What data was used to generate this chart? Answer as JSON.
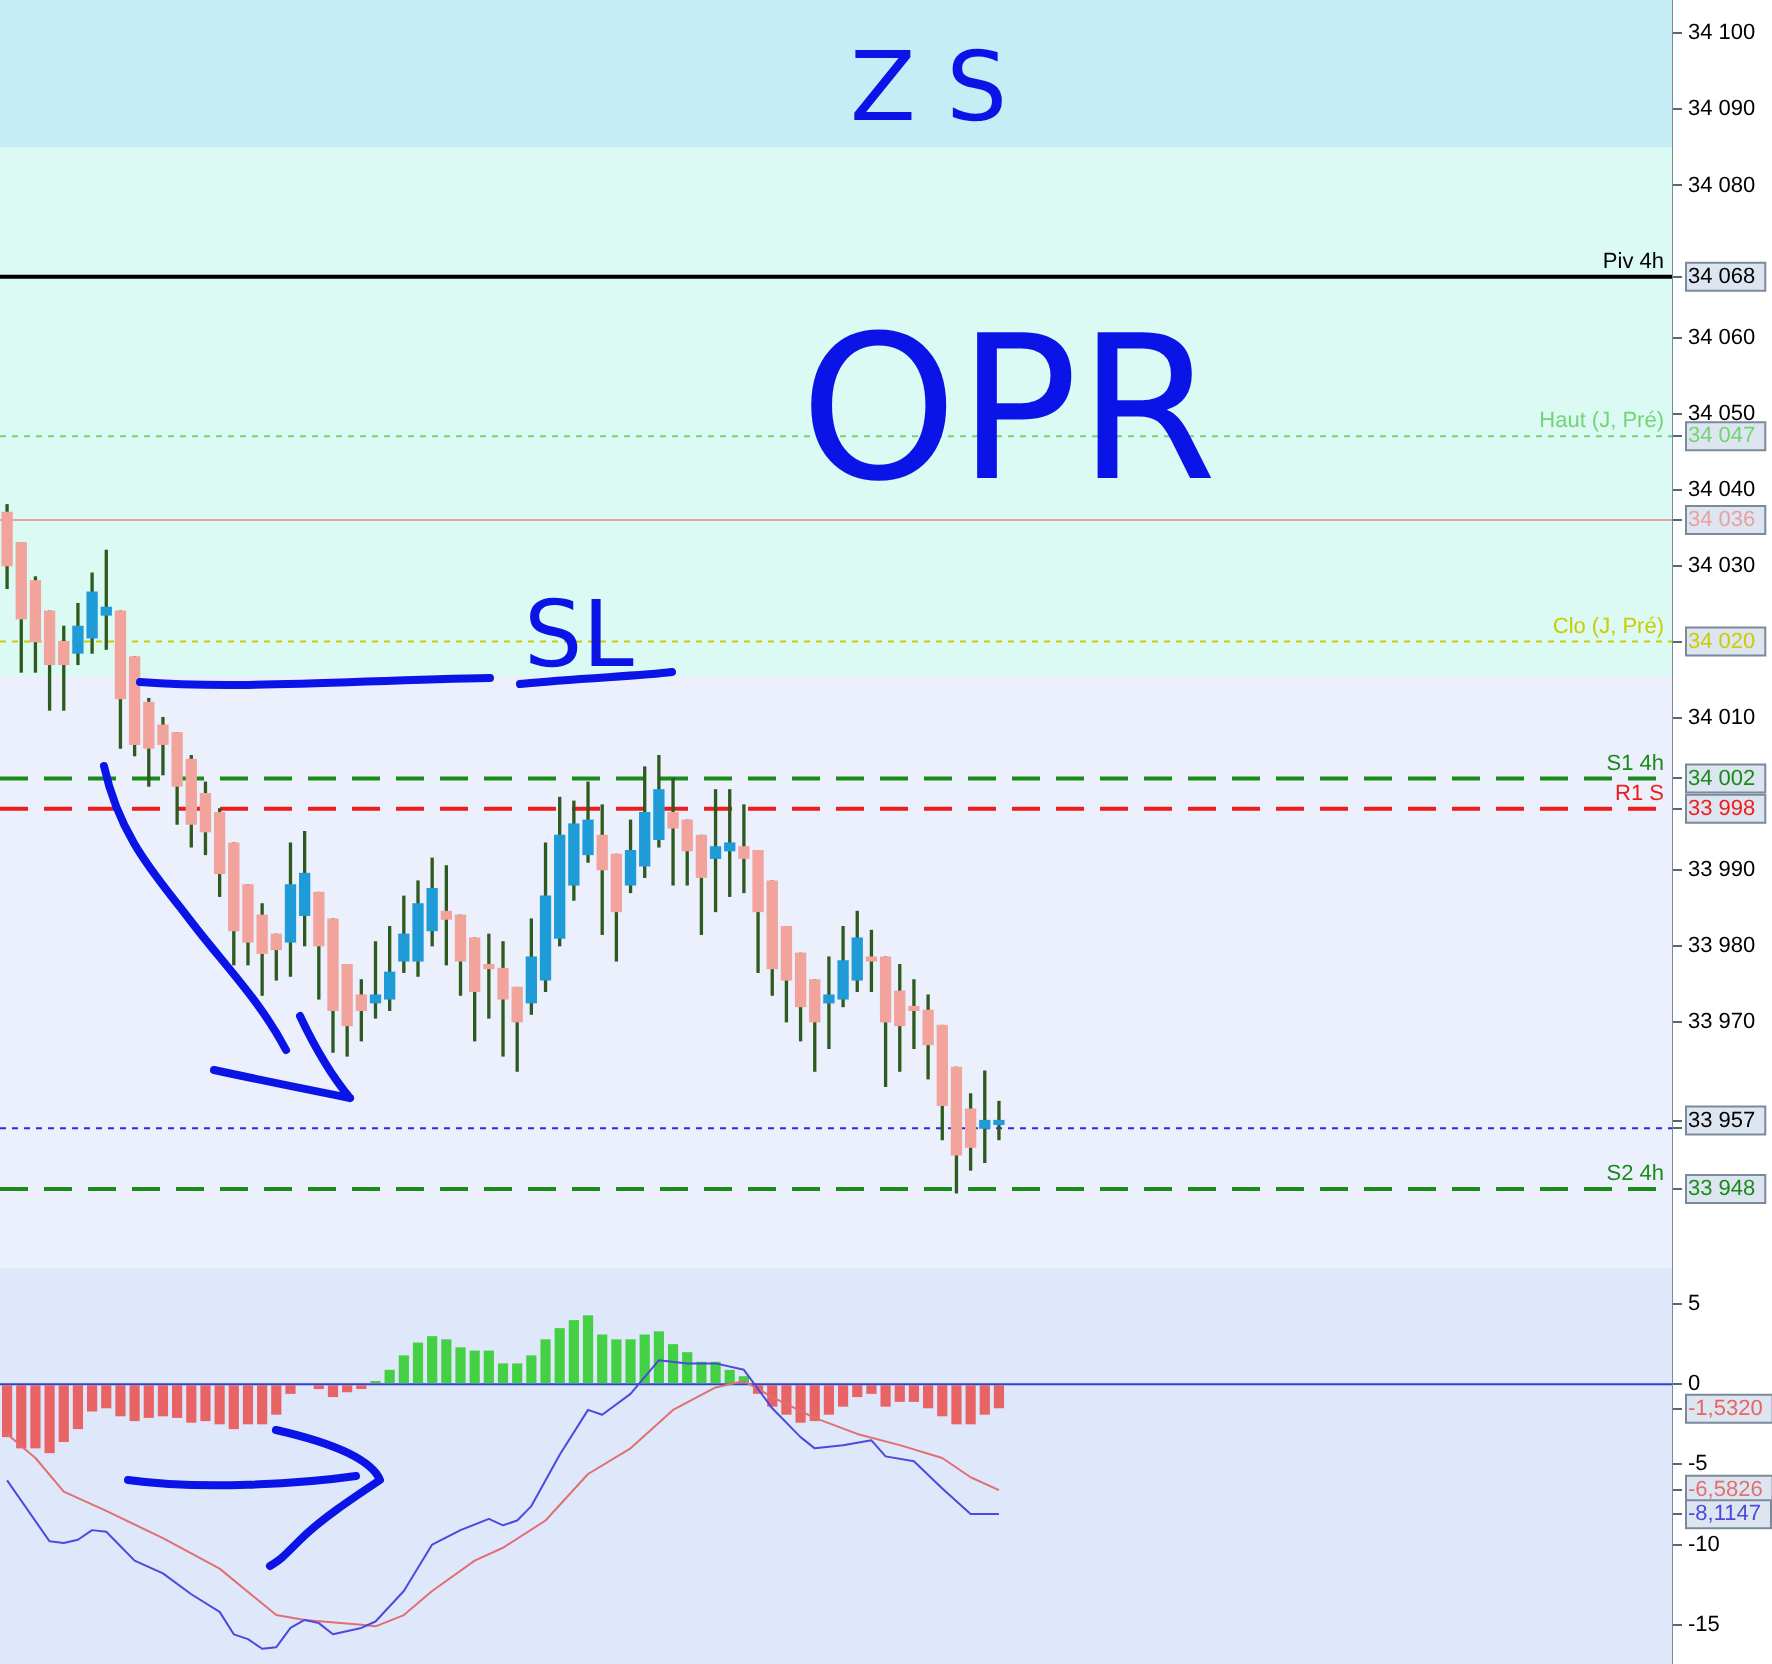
{
  "chart_data": [
    {
      "type": "candlestick",
      "tick_labels": "y",
      "categories": [
        null,
        null,
        null,
        null,
        null,
        null,
        null,
        null,
        null,
        null,
        null,
        null,
        null,
        null,
        null,
        null,
        null,
        null,
        null,
        null,
        null,
        null,
        null,
        null,
        null,
        null,
        null,
        null,
        null,
        null,
        null,
        null,
        null,
        null,
        null,
        null,
        null,
        null,
        null,
        null,
        null,
        null,
        null,
        null,
        null,
        null,
        null,
        null,
        null,
        null,
        null,
        null,
        null,
        null,
        null,
        null,
        null,
        null,
        null,
        null,
        null,
        null,
        null,
        null,
        null,
        null,
        null,
        null,
        null,
        null,
        null,
        null,
        null,
        null,
        null,
        null,
        null,
        null,
        null,
        null,
        null,
        null,
        null,
        null,
        null,
        null,
        null,
        null,
        null,
        null,
        null,
        null,
        null,
        null,
        null,
        null,
        null,
        null,
        null,
        null,
        null,
        null,
        null,
        null,
        null,
        null,
        null,
        null,
        null,
        null,
        null,
        null,
        null,
        null,
        null,
        null,
        null,
        null
      ],
      "ohlc": [
        [
          34037,
          34038,
          34027,
          34030
        ],
        [
          34033,
          34033,
          34016,
          34023
        ],
        [
          34028,
          34028.5,
          34016,
          34020
        ],
        [
          34024,
          34024,
          34011,
          34017
        ],
        [
          34020,
          34022,
          34011,
          34017
        ],
        [
          34018.5,
          34025,
          34017,
          34022
        ],
        [
          34020.5,
          34029,
          34018.5,
          34026.5
        ],
        [
          34023.5,
          34032,
          34019,
          34024.5
        ],
        [
          34024,
          34024,
          34006,
          34012.5
        ],
        [
          34018,
          34018,
          34005,
          34006.5
        ],
        [
          34012,
          34012.5,
          34001,
          34006
        ],
        [
          34009,
          34010,
          34002.5,
          34006.5
        ],
        [
          34008,
          34008,
          33996,
          34001
        ],
        [
          34004.5,
          34005,
          33993,
          33996
        ],
        [
          34000,
          34001.5,
          33992,
          33995
        ],
        [
          33997.5,
          33998,
          33986.5,
          33989.5
        ],
        [
          33993.5,
          33993.5,
          33977.5,
          33982
        ],
        [
          33988,
          33988,
          33977.5,
          33980.5
        ],
        [
          33984,
          33985.5,
          33973.5,
          33979
        ],
        [
          33981.5,
          33981.5,
          33975.5,
          33979.5
        ],
        [
          33980.5,
          33993.5,
          33976,
          33988
        ],
        [
          33984,
          33995,
          33980,
          33989.5
        ],
        [
          33987,
          33987,
          33973,
          33980
        ],
        [
          33983.5,
          33983.5,
          33966,
          33971.5
        ],
        [
          33977.5,
          33977.5,
          33965.5,
          33969.5
        ],
        [
          33973.5,
          33975.5,
          33967.5,
          33971.5
        ],
        [
          33972.5,
          33980.5,
          33970.5,
          33973.5
        ],
        [
          33973,
          33982.5,
          33971.5,
          33976.5
        ],
        [
          33978,
          33986.5,
          33976.5,
          33981.5
        ],
        [
          33978,
          33988.5,
          33976,
          33985.5
        ],
        [
          33982,
          33991.5,
          33980,
          33987.5
        ],
        [
          33984.5,
          33990.5,
          33977.5,
          33983.5
        ],
        [
          33984,
          33984,
          33973.5,
          33978
        ],
        [
          33981,
          33981,
          33967.5,
          33974
        ],
        [
          33977.5,
          33981.5,
          33970.5,
          33977
        ],
        [
          33977,
          33980.5,
          33965.5,
          33973
        ],
        [
          33974.5,
          33974.5,
          33963.5,
          33970
        ],
        [
          33972.5,
          33983.5,
          33971,
          33978.5
        ],
        [
          33975.5,
          33993.5,
          33974,
          33986.5
        ],
        [
          33981,
          33999.5,
          33980,
          33994.5
        ],
        [
          33988,
          33999,
          33986,
          33996
        ],
        [
          33992,
          34001.5,
          33991,
          33996.5
        ],
        [
          33994.5,
          33998.5,
          33981.5,
          33990
        ],
        [
          33992,
          33992,
          33978,
          33984.5
        ],
        [
          33988,
          33996.5,
          33987,
          33992.5
        ],
        [
          33990.5,
          34003.5,
          33989,
          33997.5
        ],
        [
          33994,
          34005,
          33993,
          34000.5
        ],
        [
          33997.5,
          34002,
          33988,
          33995.5
        ],
        [
          33996.5,
          33996.5,
          33988,
          33992.5
        ],
        [
          33994.5,
          33994.5,
          33981.5,
          33989
        ],
        [
          33991.5,
          34000.5,
          33984.5,
          33993
        ],
        [
          33992.5,
          34000.5,
          33986.5,
          33993.5
        ],
        [
          33993,
          33998.5,
          33987,
          33991.5
        ],
        [
          33992.5,
          33992.5,
          33976.5,
          33984.5
        ],
        [
          33988.5,
          33988.5,
          33973.5,
          33977
        ],
        [
          33982.5,
          33982.5,
          33970,
          33975.5
        ],
        [
          33979,
          33979,
          33967.5,
          33972
        ],
        [
          33975.5,
          33975.5,
          33963.5,
          33970
        ],
        [
          33972.5,
          33978.5,
          33966.5,
          33973.5
        ],
        [
          33973,
          33982.5,
          33972,
          33978
        ],
        [
          33975.5,
          33984.5,
          33974,
          33981
        ],
        [
          33978.5,
          33982,
          33974,
          33978
        ],
        [
          33978.5,
          33978.5,
          33961.5,
          33970
        ],
        [
          33974,
          33977.5,
          33963.5,
          33969.5
        ],
        [
          33972,
          33975.5,
          33966.5,
          33971.5
        ],
        [
          33971.5,
          33973.5,
          33962.5,
          33967
        ],
        [
          33969.5,
          33969.5,
          33954.5,
          33959
        ],
        [
          33964,
          33964,
          33947.5,
          33952.5
        ],
        [
          33958.5,
          33960.5,
          33950.5,
          33953.5
        ],
        [
          33956,
          33963.5,
          33951.5,
          33957
        ],
        [
          33956.5,
          33959.5,
          33954.5,
          33957
        ],
        null,
        null,
        null,
        null,
        null,
        null,
        null,
        null,
        null,
        null,
        null,
        null,
        null,
        null,
        null,
        null,
        null,
        null,
        null,
        null,
        null,
        null,
        null,
        null,
        null,
        null,
        null,
        null,
        null,
        null,
        null,
        null,
        null,
        null,
        null,
        null,
        null,
        null,
        null,
        null,
        null,
        null,
        null,
        null,
        null,
        null,
        null
      ],
      "colors": [
        "#f2a49c",
        "#f2a49c",
        "#f2a49c",
        "#f2a49c",
        "#f2a49c",
        "#1f9bd7",
        "#1f9bd7",
        "#1f9bd7",
        "#f2a49c",
        "#f2a49c",
        "#f2a49c",
        "#f2a49c",
        "#f2a49c",
        "#f2a49c",
        "#f2a49c",
        "#f2a49c",
        "#f2a49c",
        "#f2a49c",
        "#f2a49c",
        "#f2a49c",
        "#1f9bd7",
        "#1f9bd7",
        "#f2a49c",
        "#f2a49c",
        "#f2a49c",
        "#f2a49c",
        "#1f9bd7",
        "#1f9bd7",
        "#1f9bd7",
        "#1f9bd7",
        "#1f9bd7",
        "#f2a49c",
        "#f2a49c",
        "#f2a49c",
        "#f2a49c",
        "#f2a49c",
        "#f2a49c",
        "#1f9bd7",
        "#1f9bd7",
        "#1f9bd7",
        "#1f9bd7",
        "#1f9bd7",
        "#f2a49c",
        "#f2a49c",
        "#1f9bd7",
        "#1f9bd7",
        "#1f9bd7",
        "#f2a49c",
        "#f2a49c",
        "#f2a49c",
        "#1f9bd7",
        "#1f9bd7",
        "#f2a49c",
        "#f2a49c",
        "#f2a49c",
        "#f2a49c",
        "#f2a49c",
        "#f2a49c",
        "#1f9bd7",
        "#1f9bd7",
        "#1f9bd7",
        "#f2a49c",
        "#f2a49c",
        "#f2a49c",
        "#f2a49c",
        "#f2a49c",
        "#f2a49c",
        "#f2a49c",
        "#f2a49c",
        "#1f9bd7",
        "#1f9bd7",
        null,
        null,
        null,
        null,
        null,
        null,
        null,
        null,
        null,
        null,
        null,
        null,
        null,
        null,
        null,
        null,
        null,
        null,
        null,
        null,
        null,
        null,
        null,
        null,
        null,
        null,
        null,
        null,
        null,
        null,
        null,
        null,
        null,
        null,
        null,
        null,
        null,
        null,
        null,
        null,
        null,
        null,
        null,
        null,
        null,
        null,
        null
      ],
      "ylim": [
        33937.5,
        34104.5
      ],
      "yticks": [
        {
          "value": 33948,
          "label": "33 948"
        },
        {
          "value": 33956,
          "label": null
        },
        {
          "value": 33957,
          "label": "33 957"
        },
        {
          "value": 33970,
          "label": "33 970"
        },
        {
          "value": 33980,
          "label": "33 980"
        },
        {
          "value": 33990,
          "label": "33 990"
        },
        {
          "value": 33998,
          "label": "33 998"
        },
        {
          "value": 34002,
          "label": "34 002"
        },
        {
          "value": 34010,
          "label": "34 010"
        },
        {
          "value": 34020,
          "label": "34 020"
        },
        {
          "value": 34030,
          "label": "34 030"
        },
        {
          "value": 34036,
          "label": "34 036"
        },
        {
          "value": 34040,
          "label": "34 040"
        },
        {
          "value": 34047,
          "label": "34 047"
        },
        {
          "value": 34050,
          "label": "34 050"
        },
        {
          "value": 34060,
          "label": "34 060"
        },
        {
          "value": 34068,
          "label": "34 068"
        },
        {
          "value": 34080,
          "label": "34 080"
        },
        {
          "value": 34090,
          "label": "34 090"
        },
        {
          "value": 34100,
          "label": "34 100"
        }
      ],
      "bands": [
        {
          "axis": "y",
          "from": 34085,
          "to": 34104.5,
          "color": "#c6edf5"
        },
        {
          "axis": "y",
          "from": 34015.5,
          "to": 34085,
          "color": "#dbfaf3"
        }
      ],
      "ref_lines": [
        {
          "axis": "y",
          "value": 34068,
          "label": "Piv 4h",
          "color": "#000000",
          "line_style": "solid"
        },
        {
          "axis": "y",
          "value": 34047,
          "label": "Haut (J, Pré)",
          "color": "#74d474",
          "line_style": "dotted"
        },
        {
          "axis": "y",
          "value": 34036,
          "color": "#e8a0a0",
          "line_style": "solid"
        },
        {
          "axis": "y",
          "value": 34020,
          "label": "Clo (J, Pré)",
          "color": "#cccc00",
          "line_style": "dotted"
        },
        {
          "axis": "y",
          "value": 34002,
          "label": "S1 4h",
          "color": "#1a8a1a",
          "line_style": "dashed"
        },
        {
          "axis": "y",
          "value": 33998,
          "label": "R1 S",
          "color": "#ee1c1c",
          "line_style": "dashed"
        },
        {
          "axis": "y",
          "value": 33956,
          "color": "#2a2ae0",
          "line_style": "dotted"
        },
        {
          "axis": "y",
          "value": 33948,
          "label": "S2 4h",
          "color": "#1a8a1a",
          "line_style": "dashed"
        }
      ],
      "annotations": [
        "Z S",
        "OPR",
        "SL"
      ]
    },
    {
      "type": "bar",
      "tick_labels": "y",
      "categories": [
        null,
        null,
        null,
        null,
        null,
        null,
        null,
        null,
        null,
        null,
        null,
        null,
        null,
        null,
        null,
        null,
        null,
        null,
        null,
        null,
        null,
        null,
        null,
        null,
        null,
        null,
        null,
        null,
        null,
        null,
        null,
        null,
        null,
        null,
        null,
        null,
        null,
        null,
        null,
        null,
        null,
        null,
        null,
        null,
        null,
        null,
        null,
        null,
        null,
        null,
        null,
        null,
        null,
        null,
        null,
        null,
        null,
        null,
        null,
        null,
        null,
        null,
        null,
        null,
        null,
        null,
        null,
        null,
        null,
        null,
        null,
        null,
        null,
        null,
        null,
        null,
        null,
        null,
        null,
        null,
        null,
        null,
        null,
        null,
        null,
        null,
        null,
        null,
        null,
        null,
        null,
        null,
        null,
        null,
        null,
        null,
        null,
        null,
        null,
        null,
        null,
        null,
        null,
        null,
        null,
        null,
        null,
        null,
        null,
        null,
        null,
        null,
        null,
        null,
        null,
        null,
        null,
        null
      ],
      "series": [
        {
          "type": "bar",
          "values": [
            -3.3,
            -4,
            -4,
            -4.3,
            -3.6,
            -2.8,
            -1.7,
            -1.5,
            -2,
            -2.3,
            -2.1,
            -2,
            -2.1,
            -2.4,
            -2.3,
            -2.5,
            -2.8,
            -2.5,
            -2.5,
            -1.9,
            -0.6,
            0,
            -0.3,
            -0.8,
            -0.5,
            -0.3,
            0.2,
            0.9,
            1.8,
            2.6,
            3,
            2.8,
            2.3,
            2.1,
            2.1,
            1.3,
            1.3,
            1.8,
            2.8,
            3.5,
            4,
            4.3,
            3.1,
            2.8,
            2.8,
            3.1,
            3.3,
            2.5,
            2,
            1.4,
            1.4,
            0.9,
            0.5,
            -0.6,
            -1.4,
            -1.9,
            -2.4,
            -2.3,
            -1.9,
            -1.4,
            -0.8,
            -0.6,
            -1.4,
            -1.1,
            -1.1,
            -1.5,
            -2,
            -2.5,
            -2.5,
            -1.9,
            -1.5,
            null,
            null,
            null,
            null,
            null,
            null,
            null,
            null,
            null,
            null,
            null,
            null,
            null,
            null,
            null,
            null,
            null,
            null,
            null,
            null,
            null,
            null,
            null,
            null,
            null,
            null,
            null,
            null,
            null,
            null,
            null,
            null,
            null,
            null,
            null,
            null,
            null,
            null,
            null,
            null,
            null,
            null,
            null,
            null,
            null,
            null,
            null
          ],
          "colors": [
            "#e86464",
            "#e86464",
            "#e86464",
            "#e86464",
            "#e86464",
            "#e86464",
            "#e86464",
            "#e86464",
            "#e86464",
            "#e86464",
            "#e86464",
            "#e86464",
            "#e86464",
            "#e86464",
            "#e86464",
            "#e86464",
            "#e86464",
            "#e86464",
            "#e86464",
            "#e86464",
            "#e86464",
            "#e86464",
            "#e86464",
            "#e86464",
            "#e86464",
            "#e86464",
            "#44d044",
            "#44d044",
            "#44d044",
            "#44d044",
            "#44d044",
            "#44d044",
            "#44d044",
            "#44d044",
            "#44d044",
            "#44d044",
            "#44d044",
            "#44d044",
            "#44d044",
            "#44d044",
            "#44d044",
            "#44d044",
            "#44d044",
            "#44d044",
            "#44d044",
            "#44d044",
            "#44d044",
            "#44d044",
            "#44d044",
            "#44d044",
            "#44d044",
            "#44d044",
            "#44d044",
            "#e86464",
            "#e86464",
            "#e86464",
            "#e86464",
            "#e86464",
            "#e86464",
            "#e86464",
            "#e86464",
            "#e86464",
            "#e86464",
            "#e86464",
            "#e86464",
            "#e86464",
            "#e86464",
            "#e86464",
            "#e86464",
            "#e86464",
            "#e86464",
            null,
            null,
            null,
            null,
            null,
            null,
            null,
            null,
            null,
            null,
            null,
            null,
            null,
            null,
            null,
            null,
            null,
            null,
            null,
            null,
            null,
            null,
            null,
            null,
            null,
            null,
            null,
            null,
            null,
            null,
            null,
            null,
            null,
            null,
            null,
            null,
            null,
            null,
            null,
            null,
            null,
            null,
            null,
            null,
            null,
            null,
            null
          ]
        },
        {
          "type": "line",
          "color": "#4a4adc",
          "values": [
            -6,
            null,
            null,
            -9.8,
            -9.9,
            -9.7,
            -9.1,
            -9.2,
            null,
            -11,
            null,
            -11.8,
            null,
            -13.1,
            null,
            -14.2,
            -15.6,
            -15.9,
            -16.5,
            -16.4,
            -15.2,
            -14.7,
            -14.9,
            -15.6,
            null,
            -15.2,
            -14.8,
            null,
            -12.9,
            null,
            -10,
            null,
            -9.1,
            null,
            -8.4,
            -8.8,
            -8.5,
            -7.6,
            null,
            -4.4,
            null,
            -1.6,
            -1.9,
            null,
            -0.6,
            null,
            1.5,
            null,
            1.3,
            null,
            1.3,
            null,
            0.9,
            null,
            -1.5,
            null,
            -3.3,
            -4,
            null,
            -3.8,
            null,
            -3.5,
            -4.5,
            null,
            -4.8,
            null,
            -6.5,
            null,
            -8.1,
            null,
            -8.1,
            null,
            null,
            null,
            null,
            null,
            null,
            null,
            null,
            null,
            null,
            null,
            null,
            null,
            null,
            null,
            null,
            null,
            null,
            null,
            null,
            null,
            null,
            null,
            null,
            null,
            null,
            null,
            null,
            null,
            null,
            null,
            null,
            null,
            null,
            null,
            null,
            null,
            null,
            null,
            null,
            null,
            null,
            null,
            null,
            null,
            null,
            null
          ]
        },
        {
          "type": "line",
          "color": "#e07070",
          "values": [
            -3.1,
            null,
            -4.6,
            null,
            -6.7,
            null,
            null,
            -7.9,
            null,
            null,
            null,
            -9.6,
            null,
            null,
            null,
            -11.5,
            null,
            null,
            null,
            -14.4,
            null,
            -14.7,
            null,
            null,
            null,
            -15,
            -15.1,
            null,
            -14.4,
            null,
            -12.9,
            null,
            null,
            -11,
            null,
            -10.2,
            null,
            null,
            -8.5,
            null,
            null,
            -5.6,
            null,
            null,
            -4,
            null,
            null,
            -1.6,
            null,
            null,
            -0.2,
            null,
            0.2,
            null,
            -0.8,
            null,
            null,
            -2.1,
            null,
            null,
            -3.1,
            null,
            null,
            -3.8,
            null,
            null,
            -4.6,
            null,
            -5.8,
            null,
            -6.6,
            null,
            null,
            null,
            null,
            null,
            null,
            null,
            null,
            null,
            null,
            null,
            null,
            null,
            null,
            null,
            null,
            null,
            null,
            null,
            null,
            null,
            null,
            null,
            null,
            null,
            null,
            null,
            null,
            null,
            null,
            null,
            null,
            null,
            null,
            null,
            null,
            null,
            null,
            null,
            null,
            null,
            null,
            null,
            null,
            null,
            null,
            null
          ]
        }
      ],
      "ylim": [
        -17.5,
        7.3
      ],
      "yticks": [
        5,
        0,
        {
          "value": -1.532,
          "label": "-1,5320"
        },
        -5,
        {
          "value": -6.5826,
          "label": "-6,5826"
        },
        {
          "value": -8.1147,
          "label": "-8,1147"
        },
        -10,
        -15
      ],
      "ref_lines": [
        {
          "axis": "y",
          "value": 0,
          "color": "#3040c8",
          "line_style": "solid"
        }
      ]
    }
  ]
}
